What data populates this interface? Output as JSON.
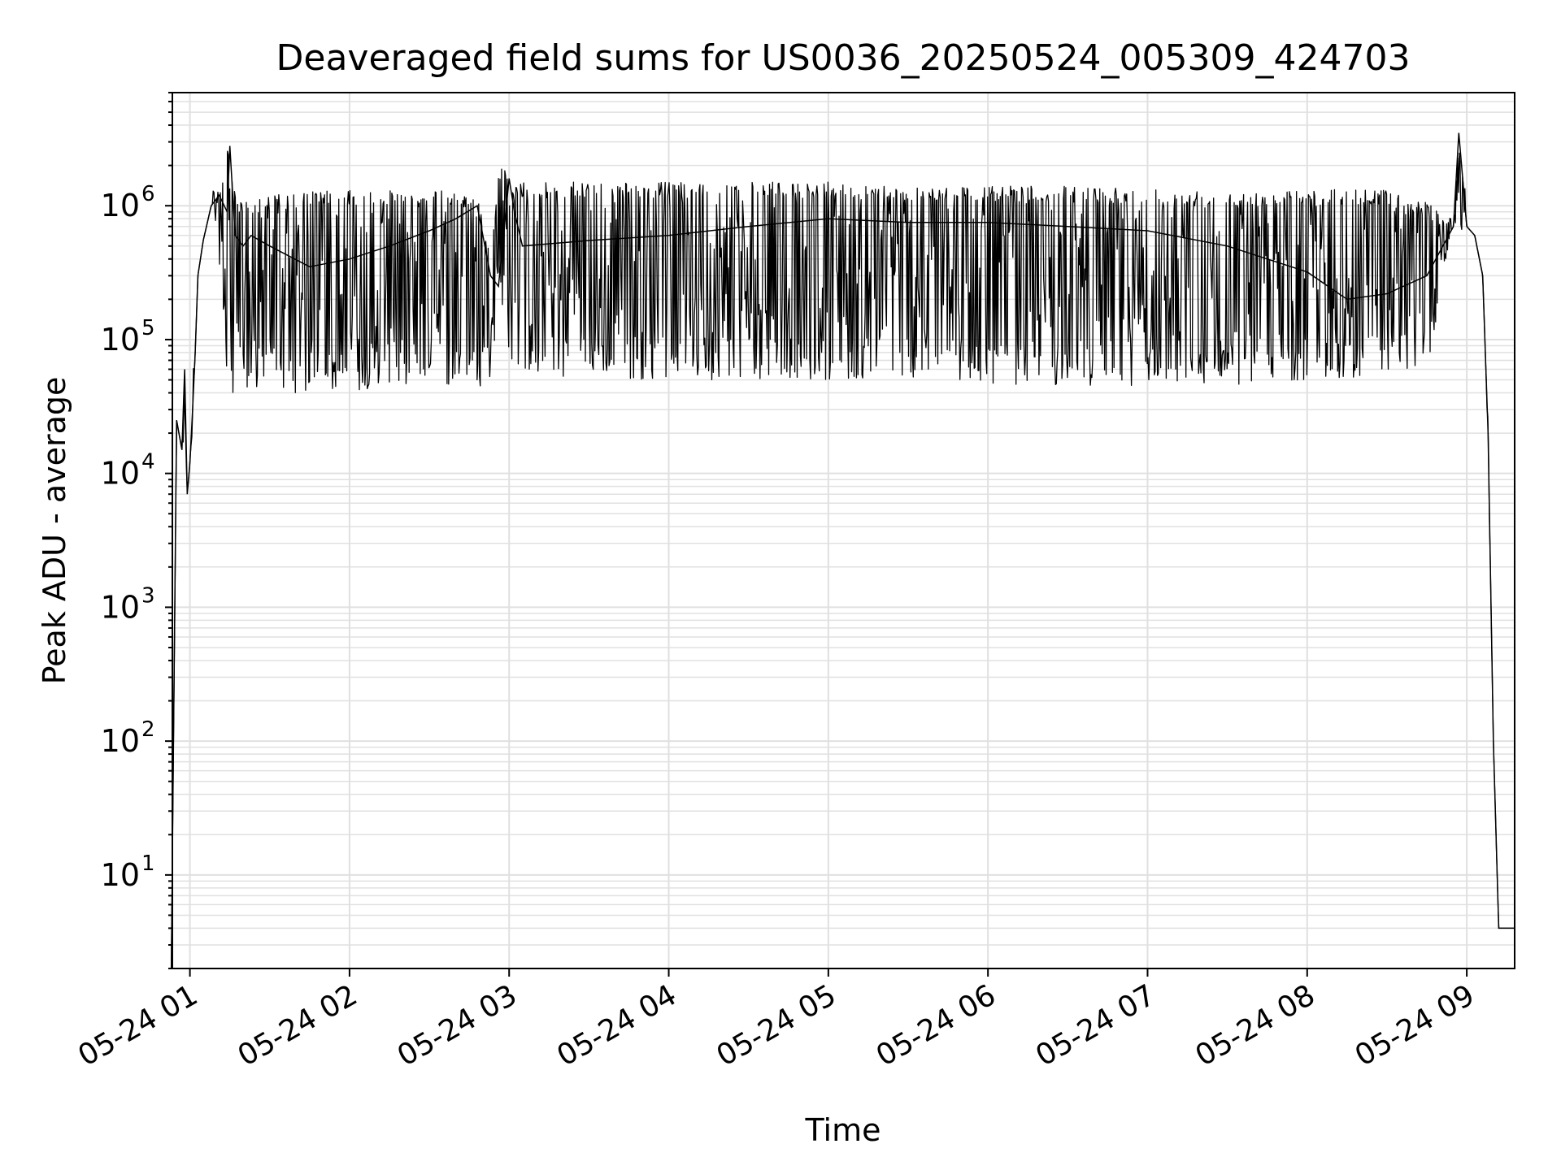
{
  "chart_data": {
    "type": "line",
    "title": "Deaveraged field sums for US0036_20250524_005309_424703",
    "xlabel": "Time",
    "ylabel": "Peak ADU - average",
    "yscale": "log",
    "ylim": [
      2,
      7000000
    ],
    "xlim_hours": [
      0.89,
      9.3
    ],
    "grid": true,
    "line_color": "#000000",
    "grid_color": "#e0e0e0",
    "x_tick_labels": [
      "05-24 01",
      "05-24 02",
      "05-24 03",
      "05-24 04",
      "05-24 05",
      "05-24 06",
      "05-24 07",
      "05-24 08",
      "05-24 09"
    ],
    "y_ticks": [
      {
        "base": "10",
        "exp": "1",
        "value": 10
      },
      {
        "base": "10",
        "exp": "2",
        "value": 100
      },
      {
        "base": "10",
        "exp": "3",
        "value": 1000
      },
      {
        "base": "10",
        "exp": "4",
        "value": 10000
      },
      {
        "base": "10",
        "exp": "5",
        "value": 100000
      },
      {
        "base": "10",
        "exp": "6",
        "value": 1000000
      }
    ],
    "series": [
      {
        "x": [
          "05-24 00:53",
          "05-24 00:55",
          "05-24 00:57",
          "05-24 00:58",
          "05-24 00:59",
          "05-24 01:00",
          "05-24 01:01",
          "05-24 01:02",
          "05-24 01:03",
          "05-24 01:05",
          "05-24 01:08",
          "05-24 01:11",
          "05-24 01:14",
          "05-24 01:15",
          "05-24 01:17",
          "05-24 01:20",
          "05-24 01:23",
          "05-24 01:30",
          "05-24 01:45",
          "05-24 02:00",
          "05-24 02:15",
          "05-24 02:30",
          "05-24 02:40",
          "05-24 02:48",
          "05-24 02:53",
          "05-24 02:56",
          "05-24 03:00",
          "05-24 03:02",
          "05-24 03:05",
          "05-24 03:30",
          "05-24 04:00",
          "05-24 04:30",
          "05-24 05:00",
          "05-24 05:30",
          "05-24 06:00",
          "05-24 06:30",
          "05-24 07:00",
          "05-24 07:30",
          "05-24 08:00",
          "05-24 08:15",
          "05-24 08:30",
          "05-24 08:45",
          "05-24 08:55",
          "05-24 08:57",
          "05-24 09:00",
          "05-24 09:03",
          "05-24 09:06",
          "05-24 09:08",
          "05-24 09:10",
          "05-24 09:12",
          "05-24 09:18"
        ],
        "y": [
          2,
          25000,
          15000,
          60000,
          7000,
          12000,
          30000,
          80000,
          300000,
          550000,
          1000000,
          1200000,
          900000,
          2800000,
          600000,
          500000,
          600000,
          500000,
          350000,
          400000,
          500000,
          650000,
          800000,
          1000000,
          300000,
          250000,
          1600000,
          900000,
          500000,
          550000,
          600000,
          700000,
          800000,
          750000,
          750000,
          700000,
          650000,
          500000,
          320000,
          200000,
          220000,
          300000,
          700000,
          3500000,
          700000,
          600000,
          300000,
          20000,
          100,
          4,
          4
        ],
        "min": [
          2,
          20000,
          12000,
          20000,
          7000,
          10000,
          20000,
          60000,
          250000,
          450000,
          800000,
          400000,
          40000,
          40000,
          40000,
          40000,
          40000,
          40000,
          40000,
          40000,
          45000,
          45000,
          45000,
          45000,
          45000,
          200000,
          80000,
          50000,
          50000,
          50000,
          50000,
          50000,
          50000,
          50000,
          45000,
          45000,
          45000,
          45000,
          50000,
          50000,
          50000,
          60000,
          650000,
          650000,
          650000,
          550000,
          250000,
          15000,
          80,
          4,
          4
        ],
        "max": [
          2,
          30000,
          18000,
          60000,
          8000,
          15000,
          35000,
          90000,
          350000,
          600000,
          1100000,
          1300000,
          2800000,
          2800000,
          1200000,
          1100000,
          1100000,
          1200000,
          1300000,
          1300000,
          1300000,
          1300000,
          1300000,
          1200000,
          400000,
          1900000,
          1900000,
          1400000,
          1500000,
          1500000,
          1500000,
          1500000,
          1500000,
          1400000,
          1400000,
          1400000,
          1350000,
          1300000,
          1300000,
          1400000,
          1300000,
          1100000,
          800000,
          3500000,
          800000,
          700000,
          350000,
          25000,
          120,
          4,
          4
        ]
      }
    ]
  }
}
